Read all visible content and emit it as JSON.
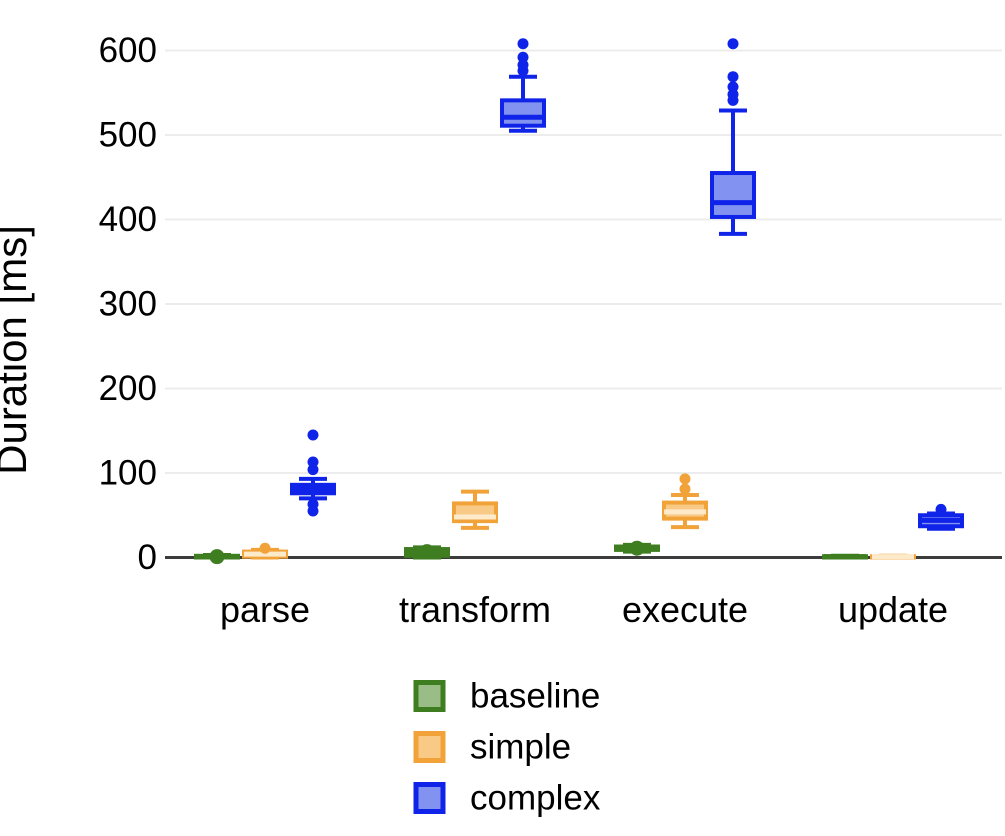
{
  "chart_data": {
    "type": "boxplot",
    "title": "",
    "ylabel": "Duration [ms]",
    "xlabel": "",
    "ylim": [
      0,
      640
    ],
    "yticks": [
      0,
      100,
      200,
      300,
      400,
      500,
      600
    ],
    "grid": true,
    "legend_position": "bottom-center",
    "categories": [
      "parse",
      "transform",
      "execute",
      "update"
    ],
    "series": [
      {
        "name": "baseline",
        "line_color": "#3e7d20",
        "fill_color": "#9abd87",
        "median_color": "#3e7d20",
        "data": [
          {
            "low": 0,
            "q1": 0,
            "median": 1,
            "q3": 2,
            "high": 3,
            "outliers": [],
            "median_dot": true
          },
          {
            "low": 0,
            "q1": 2,
            "median": 7,
            "q3": 10,
            "high": 12,
            "outliers": [],
            "median_dot": true
          },
          {
            "low": 7,
            "q1": 9,
            "median": 11,
            "q3": 13,
            "high": 15,
            "outliers": [],
            "median_dot": true
          },
          {
            "low": 0,
            "q1": 0,
            "median": 1,
            "q3": 1.5,
            "high": 2,
            "outliers": [],
            "median_dot": false
          }
        ]
      },
      {
        "name": "simple",
        "line_color": "#f1a33a",
        "fill_color": "#f8ca85",
        "median_color": "#fdeacb",
        "data": [
          {
            "low": 0,
            "q1": 1,
            "median": 4,
            "q3": 7,
            "high": 9,
            "outliers": [
              11
            ],
            "median_dot": false
          },
          {
            "low": 35,
            "q1": 43,
            "median": 48,
            "q3": 64,
            "high": 78,
            "outliers": [],
            "median_dot": false
          },
          {
            "low": 36,
            "q1": 46,
            "median": 54,
            "q3": 65,
            "high": 74,
            "outliers": [
              81,
              93
            ],
            "median_dot": false
          },
          {
            "low": 0,
            "q1": 0,
            "median": 1,
            "q3": 1.5,
            "high": 2,
            "outliers": [],
            "median_dot": false
          }
        ]
      },
      {
        "name": "complex",
        "line_color": "#0f24e8",
        "fill_color": "#8292f0",
        "median_color": "#0f24e8",
        "data": [
          {
            "low": 70,
            "q1": 76,
            "median": 81,
            "q3": 86,
            "high": 93,
            "outliers": [
              55,
              63,
              104,
              113,
              145
            ],
            "median_dot": false
          },
          {
            "low": 505,
            "q1": 511,
            "median": 521,
            "q3": 541,
            "high": 569,
            "outliers": [
              576,
              583,
              592,
              608
            ],
            "median_dot": false
          },
          {
            "low": 383,
            "q1": 403,
            "median": 420,
            "q3": 455,
            "high": 529,
            "outliers": [
              541,
              548,
              557,
              569,
              608
            ],
            "median_dot": false
          },
          {
            "low": 34,
            "q1": 37,
            "median": 44,
            "q3": 50,
            "high": 52,
            "outliers": [
              57
            ],
            "median_dot": false
          }
        ]
      }
    ],
    "legend": [
      {
        "label": "baseline",
        "line_color": "#3e7d20",
        "fill_color": "#9abd87"
      },
      {
        "label": "simple",
        "line_color": "#f1a33a",
        "fill_color": "#f8ca85"
      },
      {
        "label": "complex",
        "line_color": "#0f24e8",
        "fill_color": "#8292f0"
      }
    ],
    "colors": {
      "background": "#ffffff",
      "gridline": "#ececec",
      "axis_line": "#3c3c3c",
      "text": "#000000"
    }
  }
}
